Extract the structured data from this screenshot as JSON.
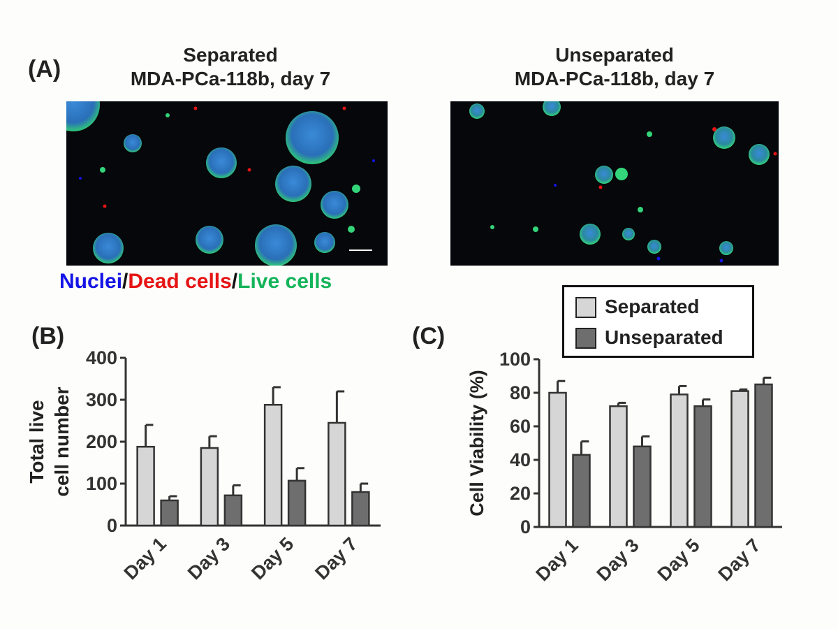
{
  "panel_a": {
    "label": "(A)",
    "left_title_line1": "Separated",
    "left_title_line2": "MDA-PCa-118b, day 7",
    "right_title_line1": "Unseparated",
    "right_title_line2": "MDA-PCa-118b, day 7",
    "stain_nuclei": "Nuclei",
    "stain_sep1": "/",
    "stain_dead": "Dead cells",
    "stain_sep2": "/",
    "stain_live": "Live cells",
    "colors": {
      "nuclei": "#1414e6",
      "dead": "#e61414",
      "live": "#14b45a",
      "cluster_blue": "#2f7fd0",
      "cluster_green": "#33d47a"
    }
  },
  "panel_b": {
    "label": "(B)"
  },
  "panel_c": {
    "label": "(C)"
  },
  "legend": {
    "separated": "Separated",
    "unseparated": "Unseparated"
  },
  "colors": {
    "separated": "#d6d6d6",
    "unseparated": "#6e6e6e",
    "axis": "#333333"
  },
  "chart_data": [
    {
      "id": "B",
      "type": "bar",
      "categories": [
        "Day 1",
        "Day 3",
        "Day 5",
        "Day 7"
      ],
      "ylabel_line1": "Total live",
      "ylabel_line2": "cell number",
      "ylim": [
        0,
        400
      ],
      "yticks": [
        "0",
        "100",
        "200",
        "300",
        "400"
      ],
      "series": [
        {
          "name": "Separated",
          "values": [
            188,
            185,
            288,
            245
          ],
          "errors": [
            52,
            28,
            42,
            75
          ]
        },
        {
          "name": "Unseparated",
          "values": [
            60,
            72,
            107,
            80
          ],
          "errors": [
            10,
            24,
            30,
            20
          ]
        }
      ]
    },
    {
      "id": "C",
      "type": "bar",
      "categories": [
        "Day 1",
        "Day 3",
        "Day 5",
        "Day 7"
      ],
      "ylabel": "Cell Viability (%)",
      "ylim": [
        0,
        100
      ],
      "yticks": [
        "0",
        "20",
        "40",
        "60",
        "80",
        "100"
      ],
      "series": [
        {
          "name": "Separated",
          "values": [
            80,
            72,
            79,
            81
          ],
          "errors": [
            7,
            2,
            5,
            1
          ]
        },
        {
          "name": "Unseparated",
          "values": [
            43,
            48,
            72,
            85
          ],
          "errors": [
            8,
            6,
            4,
            4
          ]
        }
      ]
    }
  ]
}
